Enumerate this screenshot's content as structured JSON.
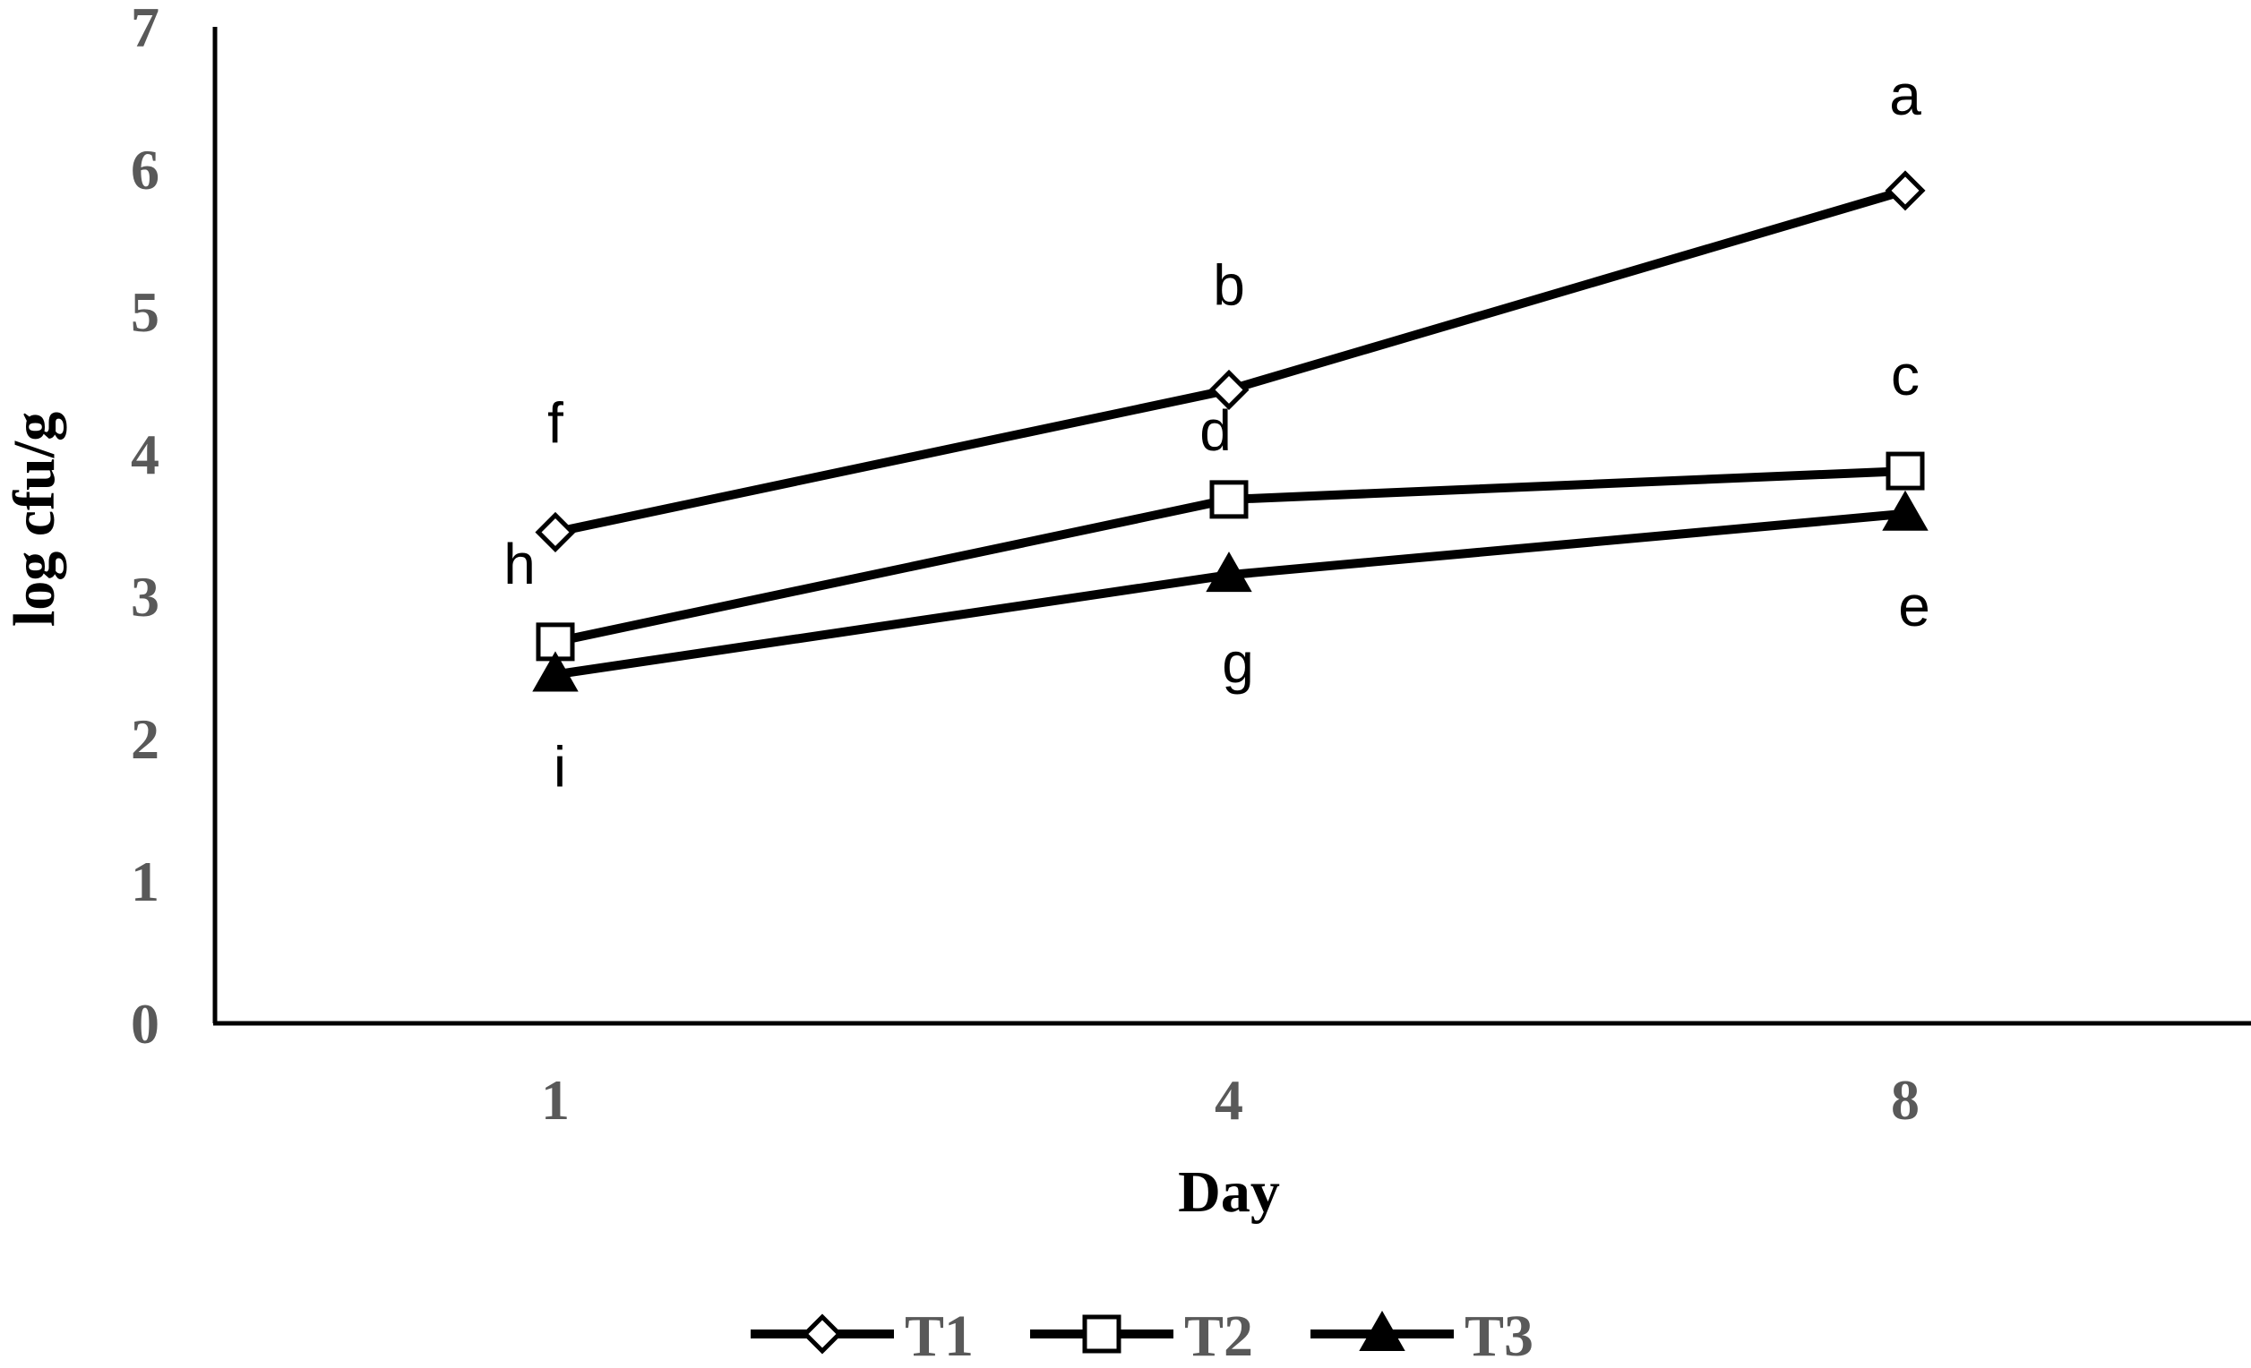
{
  "chart_data": {
    "type": "line",
    "title": "",
    "xlabel": "Day",
    "ylabel": "log cfu/g",
    "categories": [
      "1",
      "4",
      "8"
    ],
    "ylim": [
      0,
      7
    ],
    "yticks": [
      "0",
      "1",
      "2",
      "3",
      "4",
      "5",
      "6",
      "7"
    ],
    "grid": false,
    "legend_position": "bottom",
    "series": [
      {
        "name": "T1",
        "marker": "diamond-open",
        "values": [
          3.45,
          4.45,
          5.85
        ],
        "labels": [
          "f",
          "b",
          "a"
        ]
      },
      {
        "name": "T2",
        "marker": "square-open",
        "values": [
          2.68,
          3.68,
          3.88
        ],
        "labels": [
          "h",
          "d",
          "c"
        ]
      },
      {
        "name": "T3",
        "marker": "triangle-filled",
        "values": [
          2.45,
          3.15,
          3.58
        ],
        "labels": [
          "i",
          "g",
          "e"
        ]
      }
    ],
    "colors": {
      "line": "#000000",
      "tick_text": "#595959"
    }
  }
}
